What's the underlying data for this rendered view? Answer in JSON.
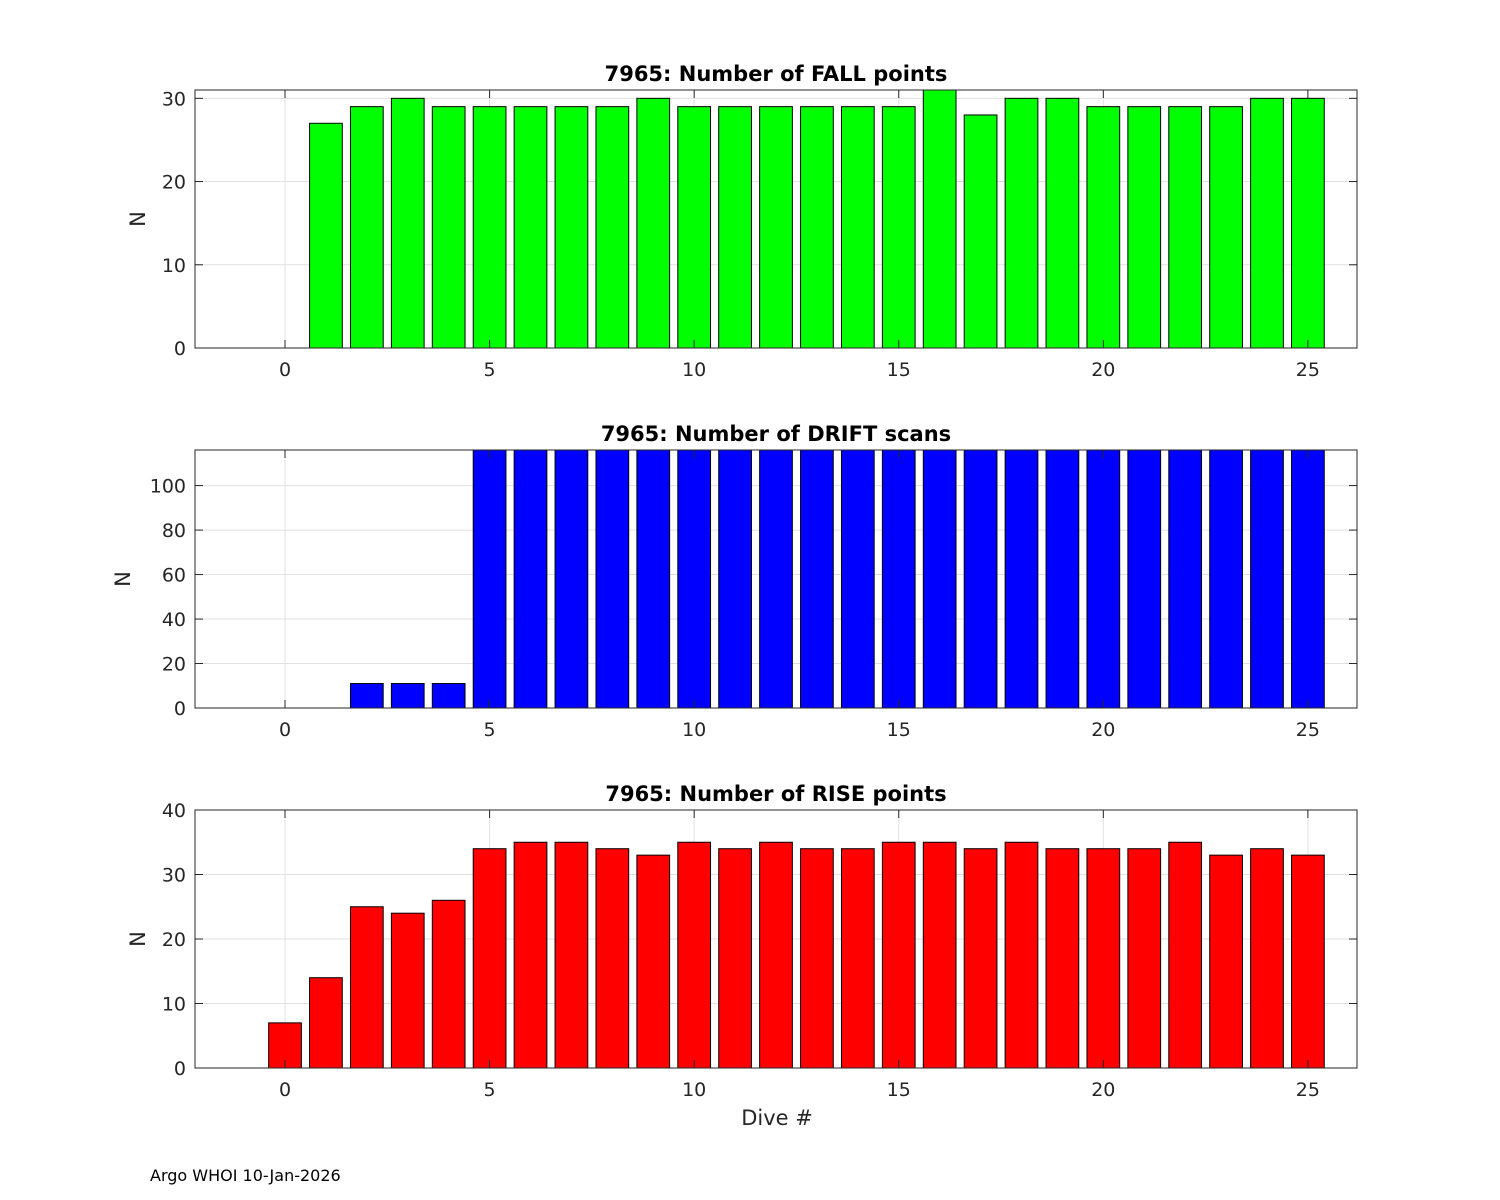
{
  "footer": "Argo WHOI 10-Jan-2026",
  "colors": {
    "fall": "#00ff00",
    "drift": "#0000ff",
    "rise": "#ff0000",
    "grid": "#e0e0e0",
    "axis": "#262626"
  },
  "chart_data": [
    {
      "type": "bar",
      "title": "7965: Number of FALL points",
      "xlabel": "",
      "ylabel": "N",
      "xlim": [
        -2.2,
        26.2
      ],
      "ylim": [
        0,
        31
      ],
      "xticks": [
        0,
        5,
        10,
        15,
        20,
        25
      ],
      "yticks": [
        0,
        10,
        20,
        30
      ],
      "grid": true,
      "color": "#00ff00",
      "x": [
        1,
        2,
        3,
        4,
        5,
        6,
        7,
        8,
        9,
        10,
        11,
        12,
        13,
        14,
        15,
        16,
        17,
        18,
        19,
        20,
        21,
        22,
        23,
        24,
        25
      ],
      "values": [
        27,
        29,
        30,
        29,
        29,
        29,
        29,
        29,
        30,
        29,
        29,
        29,
        29,
        29,
        29,
        31,
        28,
        30,
        30,
        29,
        29,
        29,
        29,
        30,
        30
      ]
    },
    {
      "type": "bar",
      "title": "7965: Number of DRIFT scans",
      "xlabel": "",
      "ylabel": "N",
      "xlim": [
        -2.2,
        26.2
      ],
      "ylim": [
        0,
        116
      ],
      "xticks": [
        0,
        5,
        10,
        15,
        20,
        25
      ],
      "yticks": [
        0,
        20,
        40,
        60,
        80,
        100
      ],
      "grid": true,
      "color": "#0000ff",
      "x": [
        -1,
        0,
        1,
        2,
        3,
        4,
        5,
        6,
        7,
        8,
        9,
        10,
        11,
        12,
        13,
        14,
        15,
        16,
        17,
        18,
        19,
        20,
        21,
        22,
        23,
        24,
        25
      ],
      "values": [
        0,
        0,
        0,
        11,
        11,
        11,
        116,
        116,
        116,
        116,
        116,
        116,
        116,
        116,
        116,
        116,
        116,
        116,
        116,
        116,
        116,
        116,
        116,
        116,
        116,
        116,
        116
      ]
    },
    {
      "type": "bar",
      "title": "7965: Number of RISE points",
      "xlabel": "Dive #",
      "ylabel": "N",
      "xlim": [
        -2.2,
        26.2
      ],
      "ylim": [
        0,
        40
      ],
      "xticks": [
        0,
        5,
        10,
        15,
        20,
        25
      ],
      "yticks": [
        0,
        10,
        20,
        30,
        40
      ],
      "grid": true,
      "color": "#ff0000",
      "x": [
        0,
        1,
        2,
        3,
        4,
        5,
        6,
        7,
        8,
        9,
        10,
        11,
        12,
        13,
        14,
        15,
        16,
        17,
        18,
        19,
        20,
        21,
        22,
        23,
        24,
        25
      ],
      "values": [
        7,
        14,
        25,
        24,
        26,
        34,
        35,
        35,
        34,
        33,
        35,
        34,
        35,
        34,
        34,
        35,
        35,
        34,
        35,
        34,
        34,
        34,
        35,
        33,
        34,
        33
      ]
    }
  ]
}
